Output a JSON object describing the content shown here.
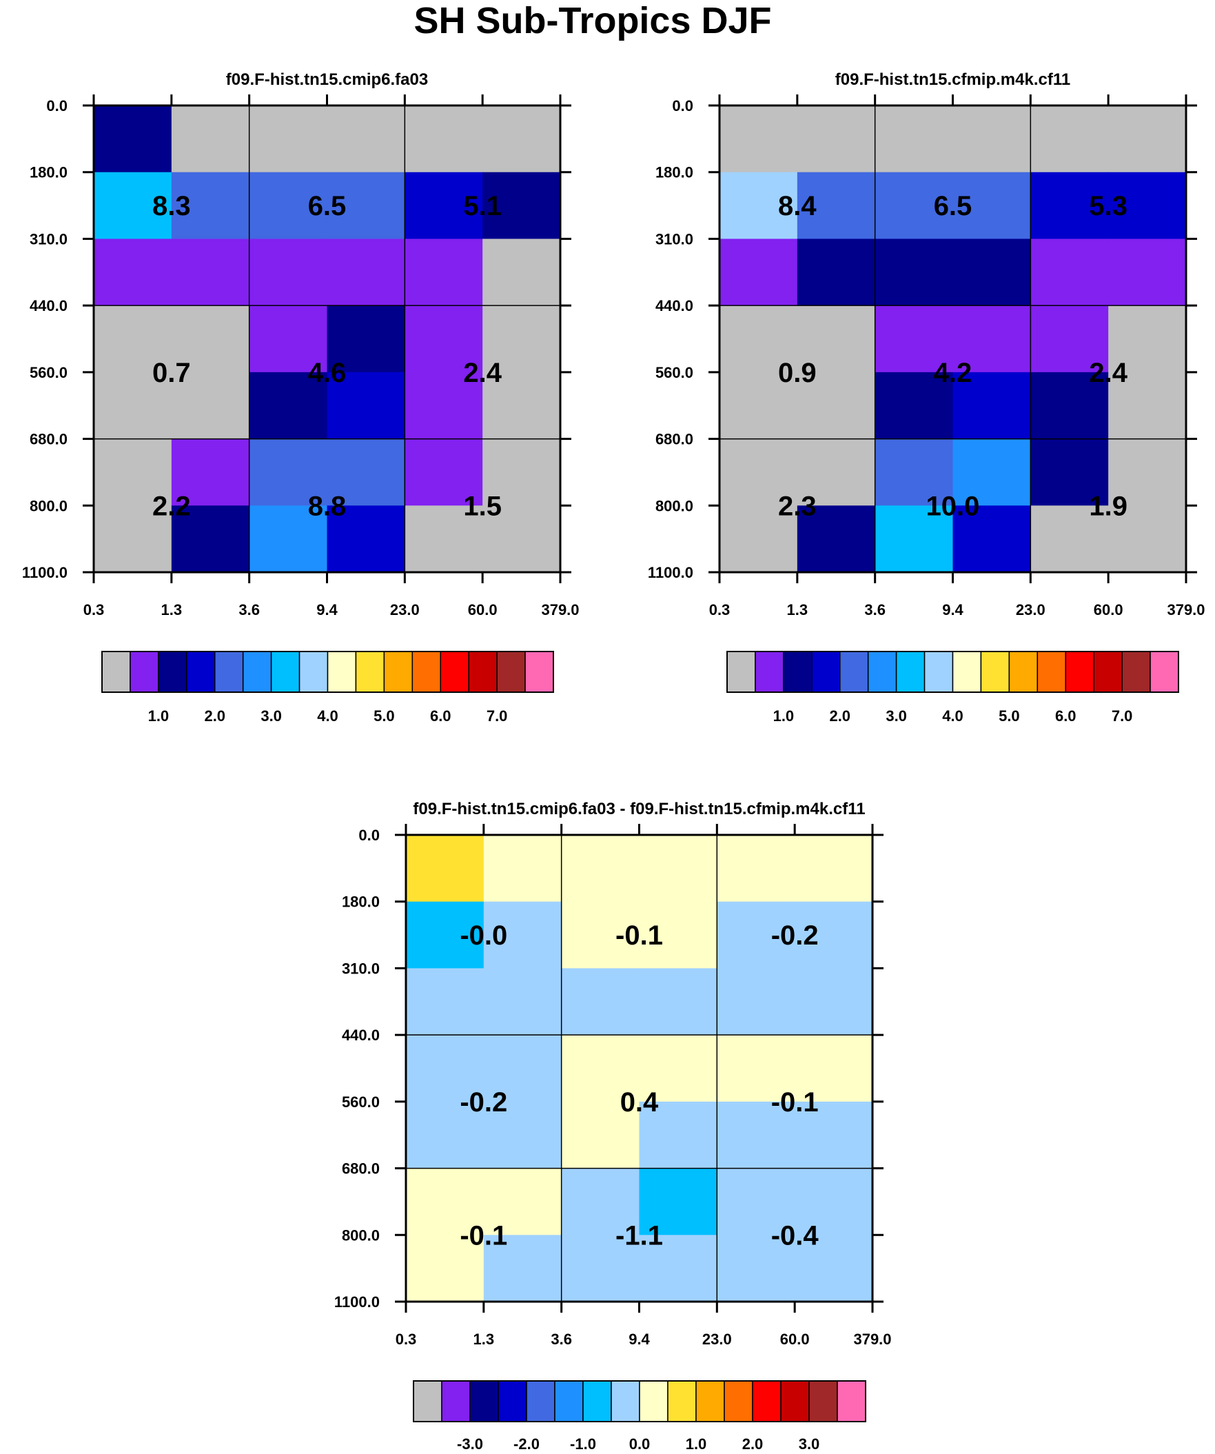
{
  "title": "SH Sub-Tropics DJF",
  "palette": [
    "#C0C0C0",
    "#8221F0",
    "#00008B",
    "#0000CD",
    "#4169E1",
    "#1E90FF",
    "#00BFFF",
    "#A0D2FF",
    "#FFFFC8",
    "#FFE132",
    "#FFAA00",
    "#FF6E00",
    "#FF0000",
    "#C80000",
    "#A02828",
    "#FF69B4"
  ],
  "chart_data": [
    {
      "type": "heatmap",
      "title": "f09.F-hist.tn15.cmip6.fa03",
      "x_ticks": [
        "0.3",
        "1.3",
        "3.6",
        "9.4",
        "23.0",
        "60.0",
        "379.0"
      ],
      "y_ticks": [
        "0.0",
        "180.0",
        "310.0",
        "440.0",
        "560.0",
        "680.0",
        "800.0",
        "1100.0"
      ],
      "cell_color_index": [
        [
          2,
          0,
          0,
          0,
          0,
          0
        ],
        [
          6,
          4,
          4,
          4,
          3,
          2
        ],
        [
          1,
          1,
          1,
          1,
          1,
          0
        ],
        [
          0,
          0,
          1,
          2,
          1,
          0
        ],
        [
          0,
          0,
          2,
          3,
          1,
          0
        ],
        [
          0,
          1,
          4,
          4,
          1,
          0
        ],
        [
          0,
          2,
          5,
          3,
          0,
          0
        ]
      ],
      "group_values": [
        [
          "8.3",
          "6.5",
          "5.1"
        ],
        [
          "0.7",
          "4.6",
          "2.4"
        ],
        [
          "2.2",
          "8.8",
          "1.5"
        ]
      ],
      "colorbar_labels": [
        "1.0",
        "2.0",
        "3.0",
        "4.0",
        "5.0",
        "6.0",
        "7.0"
      ]
    },
    {
      "type": "heatmap",
      "title": "f09.F-hist.tn15.cfmip.m4k.cf11",
      "x_ticks": [
        "0.3",
        "1.3",
        "3.6",
        "9.4",
        "23.0",
        "60.0",
        "379.0"
      ],
      "y_ticks": [
        "0.0",
        "180.0",
        "310.0",
        "440.0",
        "560.0",
        "680.0",
        "800.0",
        "1100.0"
      ],
      "cell_color_index": [
        [
          0,
          0,
          0,
          0,
          0,
          0
        ],
        [
          7,
          4,
          4,
          4,
          3,
          3
        ],
        [
          1,
          2,
          2,
          2,
          1,
          1
        ],
        [
          0,
          0,
          1,
          1,
          1,
          0
        ],
        [
          0,
          0,
          2,
          3,
          2,
          0
        ],
        [
          0,
          0,
          4,
          5,
          2,
          0
        ],
        [
          0,
          2,
          6,
          3,
          0,
          0
        ]
      ],
      "group_values": [
        [
          "8.4",
          "6.5",
          "5.3"
        ],
        [
          "0.9",
          "4.2",
          "2.4"
        ],
        [
          "2.3",
          "10.0",
          "1.9"
        ]
      ],
      "colorbar_labels": [
        "1.0",
        "2.0",
        "3.0",
        "4.0",
        "5.0",
        "6.0",
        "7.0"
      ]
    },
    {
      "type": "heatmap",
      "title": "f09.F-hist.tn15.cmip6.fa03 - f09.F-hist.tn15.cfmip.m4k.cf11",
      "x_ticks": [
        "0.3",
        "1.3",
        "3.6",
        "9.4",
        "23.0",
        "60.0",
        "379.0"
      ],
      "y_ticks": [
        "0.0",
        "180.0",
        "310.0",
        "440.0",
        "560.0",
        "680.0",
        "800.0",
        "1100.0"
      ],
      "cell_color_index": [
        [
          9,
          8,
          8,
          8,
          8,
          8
        ],
        [
          6,
          7,
          8,
          8,
          7,
          7
        ],
        [
          7,
          7,
          7,
          7,
          7,
          7
        ],
        [
          7,
          7,
          8,
          8,
          8,
          8
        ],
        [
          7,
          7,
          8,
          7,
          7,
          7
        ],
        [
          8,
          8,
          7,
          6,
          7,
          7
        ],
        [
          8,
          7,
          7,
          7,
          7,
          7
        ]
      ],
      "group_values": [
        [
          "-0.0",
          "-0.1",
          "-0.2"
        ],
        [
          "-0.2",
          "0.4",
          "-0.1"
        ],
        [
          "-0.1",
          "-1.1",
          "-0.4"
        ]
      ],
      "colorbar_labels": [
        "-3.0",
        "-2.0",
        "-1.0",
        "0.0",
        "1.0",
        "2.0",
        "3.0"
      ]
    }
  ]
}
